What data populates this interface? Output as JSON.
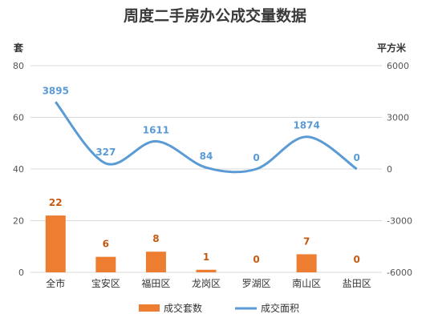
{
  "chart_data": {
    "type": "bar",
    "title": "周度二手房办公成交量数据",
    "categories": [
      "全市",
      "宝安区",
      "福田区",
      "龙岗区",
      "罗湖区",
      "南山区",
      "盐田区"
    ],
    "left_axis": {
      "unit": "套",
      "ylim": [
        0,
        80
      ],
      "ticks": [
        0,
        20,
        40,
        60,
        80
      ]
    },
    "right_axis": {
      "unit": "平方米",
      "ylim": [
        -6000,
        6000
      ],
      "ticks": [
        -6000,
        -3000,
        0,
        3000,
        6000
      ]
    },
    "grid": true,
    "legend_position": "bottom",
    "series": [
      {
        "name": "成交套数",
        "type": "bar",
        "axis": "left",
        "color": "#ED7D31",
        "values": [
          22,
          6,
          8,
          1,
          0,
          7,
          0
        ]
      },
      {
        "name": "成交面积",
        "type": "line",
        "axis": "right",
        "color": "#5B9BD5",
        "smooth": true,
        "values": [
          3895,
          327,
          1611,
          84,
          0,
          1874,
          0
        ]
      }
    ]
  }
}
